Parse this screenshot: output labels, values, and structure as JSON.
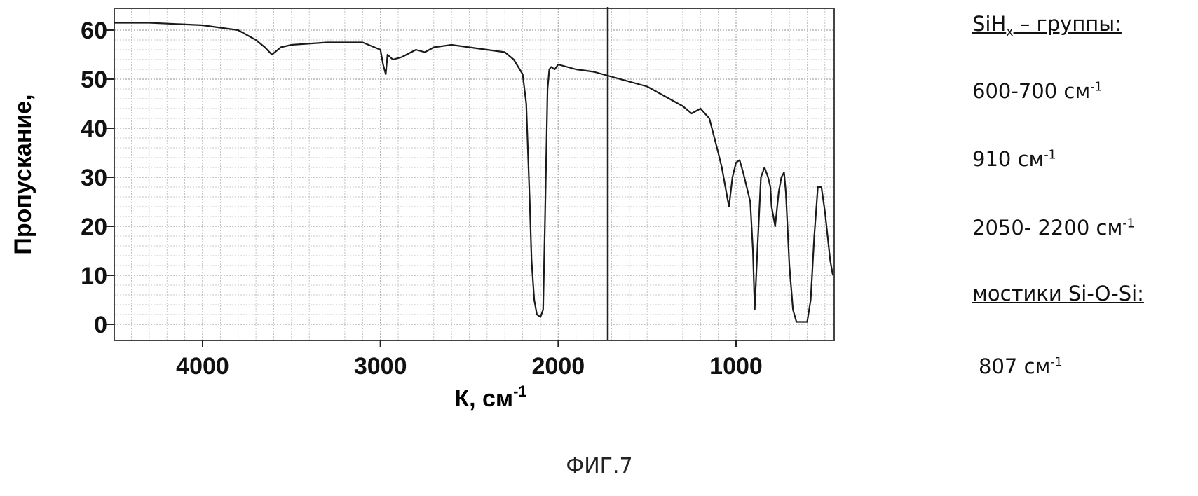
{
  "chart_data": {
    "type": "line",
    "xlabel": "К, см",
    "xlabel_sup": "-1",
    "ylabel": "Пропускание,",
    "xlim": [
      4500,
      450
    ],
    "ylim": [
      0,
      62
    ],
    "xticks": [
      4000,
      3000,
      2000,
      1000
    ],
    "yticks": [
      0,
      10,
      20,
      30,
      40,
      50,
      60
    ],
    "grid": true,
    "series": [
      {
        "x": [
          4500,
          4300,
          4000,
          3800,
          3700,
          3650,
          3610,
          3560,
          3500,
          3300,
          3100,
          3000,
          2985,
          2970,
          2960,
          2930,
          2880,
          2800,
          2750,
          2700,
          2600,
          2500,
          2400,
          2300,
          2250,
          2200,
          2180,
          2160,
          2150,
          2135,
          2120,
          2100,
          2085,
          2075,
          2060,
          2050,
          2040,
          2020,
          2000,
          1900,
          1800,
          1700,
          1600,
          1500,
          1400,
          1300,
          1250,
          1200,
          1150,
          1100,
          1080,
          1060,
          1050,
          1040,
          1020,
          1000,
          980,
          960,
          940,
          920,
          905,
          895,
          880,
          860,
          840,
          820,
          807,
          800,
          780,
          760,
          745,
          730,
          720,
          700,
          680,
          660,
          620,
          600,
          580,
          560,
          540,
          520,
          500,
          470,
          455
        ],
        "y": [
          61.5,
          61.5,
          61,
          60,
          58,
          56.5,
          55,
          56.5,
          57,
          57.5,
          57.5,
          56,
          53,
          51,
          55,
          54,
          54.5,
          56,
          55.5,
          56.5,
          57,
          56.5,
          56,
          55.5,
          54,
          51,
          45,
          25,
          13,
          5,
          2,
          1.5,
          3,
          20,
          48,
          52,
          52.5,
          52,
          53,
          52,
          51.5,
          50.5,
          49.5,
          48.5,
          46.5,
          44.5,
          43,
          44,
          42,
          35,
          32,
          28,
          26,
          24,
          30,
          33,
          33.5,
          31,
          28,
          25,
          15,
          3,
          15,
          30,
          32,
          30,
          28,
          24,
          20,
          27,
          30,
          31,
          27,
          12,
          3,
          0.5,
          0.5,
          0.5,
          5,
          18,
          28,
          28,
          23,
          13,
          10
        ]
      }
    ]
  },
  "side_labels": {
    "groups_heading_main": "SiH",
    "groups_heading_sub": "x",
    "groups_heading_rest": " – группы:",
    "peak1": "600-700 см",
    "peak2": "910 см",
    "peak3": "2050- 2200 см",
    "bridges_heading": "мостики Si-O-Si:",
    "peak4": "807 см",
    "unit_sup": "-1"
  },
  "caption": "ФИГ.7"
}
